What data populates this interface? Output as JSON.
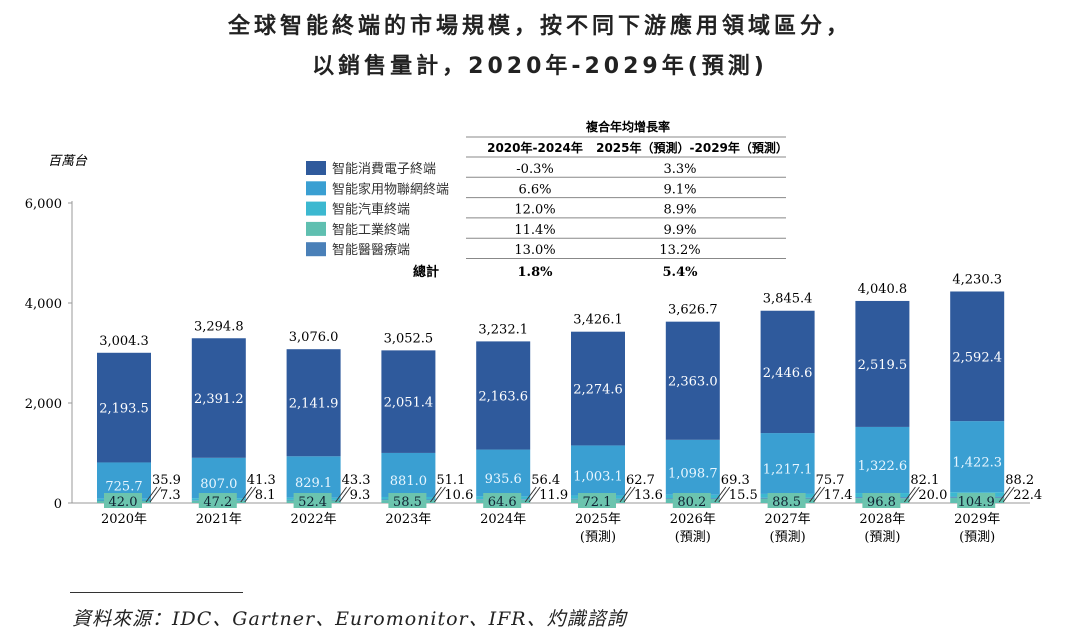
{
  "title_line1": "全球智能終端的市場規模，按不同下游應用領域區分，",
  "title_line2": "以銷售量計，2020年-2029年(預測)",
  "source": "資料來源：IDC、Gartner、Euromonitor、IFR、灼識諮詢",
  "chart_data": {
    "type": "bar",
    "stacked": true,
    "ylabel": "百萬台",
    "ylim": [
      0,
      6000
    ],
    "yticks": [
      "0",
      "2,000",
      "4,000",
      "6,000"
    ],
    "categories": [
      "2020年",
      "2021年",
      "2022年",
      "2023年",
      "2024年",
      "2025年",
      "2026年",
      "2027年",
      "2028年",
      "2029年"
    ],
    "forecast_note": "(預測)",
    "forecast_from_index": 5,
    "series": [
      {
        "name": "智能消費電子終端",
        "color": "#2f5a9c",
        "values": [
          2193.5,
          2391.2,
          2141.9,
          2051.4,
          2163.6,
          2274.6,
          2363.0,
          2446.6,
          2519.5,
          2592.4
        ]
      },
      {
        "name": "智能家用物聯網終端",
        "color": "#3a9fd2",
        "values": [
          725.7,
          807.0,
          829.1,
          881.0,
          935.6,
          1003.1,
          1098.7,
          1217.1,
          1322.6,
          1422.3
        ]
      },
      {
        "name": "智能汽車終端",
        "color": "#3cb8d0",
        "values": [
          35.9,
          41.3,
          43.3,
          51.1,
          56.4,
          62.7,
          69.3,
          75.7,
          82.1,
          88.2
        ]
      },
      {
        "name": "智能工業終端",
        "color": "#5fbfb0",
        "values": [
          42.0,
          47.2,
          52.4,
          58.5,
          64.6,
          72.1,
          80.2,
          88.5,
          96.8,
          104.9
        ]
      },
      {
        "name": "智能醫醫療端",
        "color": "#4a80b8",
        "values": [
          7.3,
          8.1,
          9.3,
          10.6,
          11.9,
          13.6,
          15.5,
          17.4,
          20.0,
          22.4
        ]
      }
    ],
    "totals": [
      "3,004.3",
      "3,294.8",
      "3,076.0",
      "3,052.5",
      "3,232.1",
      "3,426.1",
      "3,626.7",
      "3,845.4",
      "4,040.8",
      "4,230.3"
    ],
    "totals_values": [
      3004.3,
      3294.8,
      3076.0,
      3052.5,
      3232.1,
      3426.1,
      3626.7,
      3845.4,
      4040.8,
      4230.3
    ],
    "cagr_table": {
      "header": "複合年均增長率",
      "columns": [
        "2020年-2024年",
        "2025年（預測）-2029年（預測）"
      ],
      "rows": [
        [
          "-0.3%",
          "3.3%"
        ],
        [
          "6.6%",
          "9.1%"
        ],
        [
          "12.0%",
          "8.9%"
        ],
        [
          "11.4%",
          "9.9%"
        ],
        [
          "13.0%",
          "13.2%"
        ]
      ],
      "total_label": "總計",
      "total": [
        "1.8%",
        "5.4%"
      ]
    },
    "legend_position": "top-center"
  }
}
